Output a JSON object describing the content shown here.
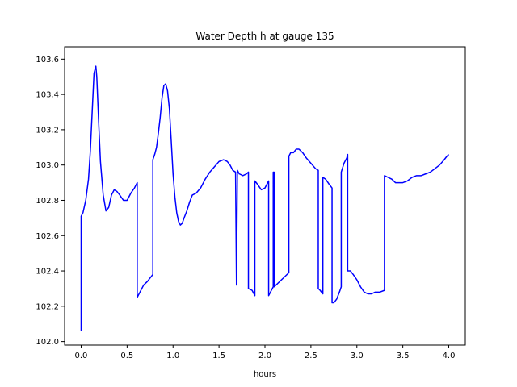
{
  "chart_data": {
    "type": "line",
    "title": "Water Depth h at gauge 135",
    "xlabel": "hours",
    "ylabel": "",
    "xlim": [
      -0.18,
      4.18
    ],
    "ylim": [
      101.98,
      103.67
    ],
    "xticks": [
      0.0,
      0.5,
      1.0,
      1.5,
      2.0,
      2.5,
      3.0,
      3.5,
      4.0
    ],
    "xtick_labels": [
      "0.0",
      "0.5",
      "1.0",
      "1.5",
      "2.0",
      "2.5",
      "3.0",
      "3.5",
      "4.0"
    ],
    "yticks": [
      102.0,
      102.2,
      102.4,
      102.6,
      102.8,
      103.0,
      103.2,
      103.4,
      103.6
    ],
    "ytick_labels": [
      "102.0",
      "102.2",
      "102.4",
      "102.6",
      "102.8",
      "103.0",
      "103.2",
      "103.4",
      "103.6"
    ],
    "grid": false,
    "series": [
      {
        "color": "#0000ff",
        "x": [
          0.0,
          0.0,
          0.02,
          0.05,
          0.08,
          0.1,
          0.12,
          0.14,
          0.16,
          0.17,
          0.19,
          0.21,
          0.24,
          0.27,
          0.3,
          0.33,
          0.36,
          0.39,
          0.42,
          0.46,
          0.5,
          0.54,
          0.58,
          0.61,
          0.61,
          0.64,
          0.68,
          0.72,
          0.78,
          0.78,
          0.8,
          0.82,
          0.84,
          0.86,
          0.88,
          0.9,
          0.92,
          0.94,
          0.96,
          0.98,
          1.0,
          1.02,
          1.04,
          1.06,
          1.08,
          1.1,
          1.12,
          1.15,
          1.18,
          1.21,
          1.25,
          1.3,
          1.35,
          1.4,
          1.45,
          1.5,
          1.55,
          1.59,
          1.62,
          1.65,
          1.68,
          1.69,
          1.69,
          1.7,
          1.7,
          1.72,
          1.76,
          1.8,
          1.82,
          1.82,
          1.86,
          1.89,
          1.89,
          1.92,
          1.96,
          2.0,
          2.02,
          2.04,
          2.04,
          2.07,
          2.09,
          2.09,
          2.1,
          2.1,
          2.14,
          2.18,
          2.22,
          2.26,
          2.26,
          2.28,
          2.31,
          2.34,
          2.37,
          2.41,
          2.45,
          2.5,
          2.55,
          2.58,
          2.58,
          2.6,
          2.63,
          2.63,
          2.66,
          2.7,
          2.73,
          2.73,
          2.75,
          2.78,
          2.81,
          2.83,
          2.83,
          2.86,
          2.89,
          2.9,
          2.9,
          2.93,
          2.96,
          3.0,
          3.04,
          3.08,
          3.12,
          3.16,
          3.2,
          3.25,
          3.3,
          3.3,
          3.34,
          3.38,
          3.42,
          3.46,
          3.5,
          3.55,
          3.6,
          3.65,
          3.7,
          3.75,
          3.8,
          3.85,
          3.9,
          3.95,
          3.98,
          4.0
        ],
        "y": [
          102.06,
          102.71,
          102.73,
          102.8,
          102.92,
          103.08,
          103.3,
          103.52,
          103.56,
          103.5,
          103.25,
          103.02,
          102.83,
          102.74,
          102.76,
          102.83,
          102.86,
          102.85,
          102.83,
          102.8,
          102.8,
          102.84,
          102.87,
          102.9,
          102.25,
          102.28,
          102.32,
          102.34,
          102.38,
          103.03,
          103.06,
          103.1,
          103.18,
          103.27,
          103.38,
          103.45,
          103.46,
          103.42,
          103.32,
          103.14,
          102.95,
          102.82,
          102.73,
          102.68,
          102.66,
          102.67,
          102.7,
          102.74,
          102.79,
          102.83,
          102.84,
          102.87,
          102.92,
          102.96,
          102.99,
          103.02,
          103.03,
          103.02,
          103.0,
          102.97,
          102.96,
          102.33,
          102.32,
          102.97,
          102.97,
          102.95,
          102.94,
          102.95,
          102.96,
          102.3,
          102.29,
          102.26,
          102.91,
          102.89,
          102.86,
          102.87,
          102.89,
          102.91,
          102.26,
          102.29,
          102.31,
          102.96,
          102.96,
          102.31,
          102.33,
          102.35,
          102.37,
          102.39,
          103.05,
          103.07,
          103.07,
          103.09,
          103.09,
          103.07,
          103.04,
          103.01,
          102.98,
          102.97,
          102.3,
          102.29,
          102.27,
          102.93,
          102.92,
          102.89,
          102.87,
          102.22,
          102.22,
          102.24,
          102.28,
          102.31,
          102.96,
          103.01,
          103.04,
          103.06,
          102.4,
          102.4,
          102.38,
          102.35,
          102.31,
          102.28,
          102.27,
          102.27,
          102.28,
          102.28,
          102.29,
          102.94,
          102.93,
          102.92,
          102.9,
          102.9,
          102.9,
          102.91,
          102.93,
          102.94,
          102.94,
          102.95,
          102.96,
          102.98,
          103.0,
          103.03,
          103.05,
          103.06
        ]
      }
    ]
  }
}
